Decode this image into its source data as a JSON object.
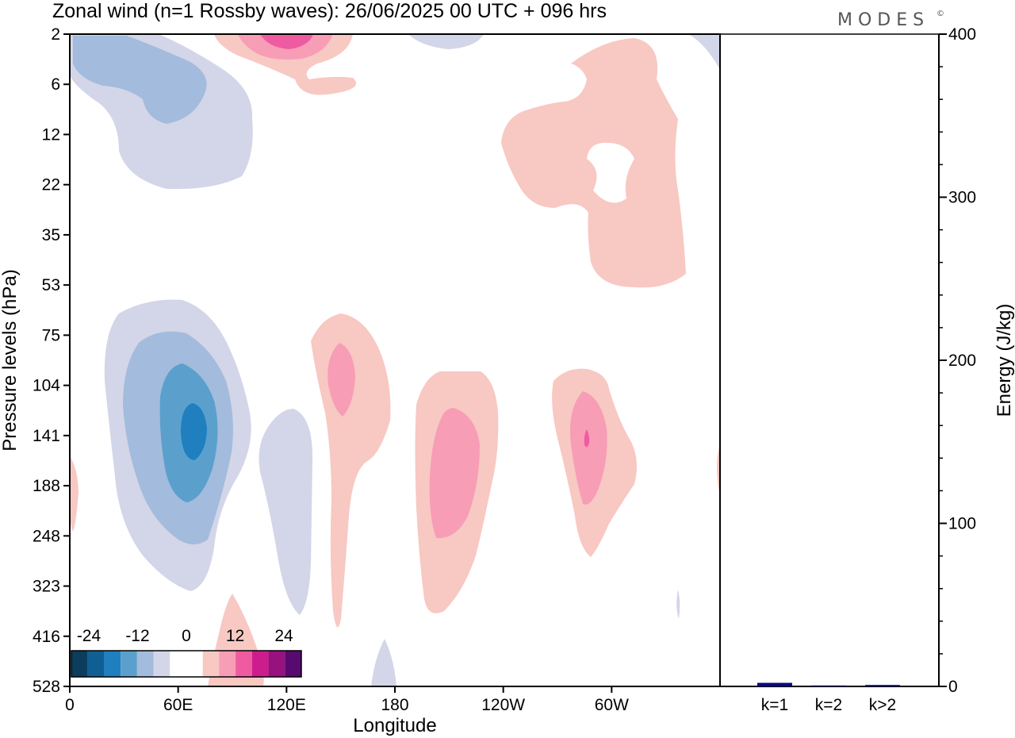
{
  "header": {
    "title": "Zonal wind (n=1 Rossby waves):  26/06/2025  00 UTC  + 096 hrs",
    "logo": "MODES",
    "logo_mark": "©"
  },
  "colors": {
    "neg": [
      "#0c3d5c",
      "#0f5f95",
      "#1f7fbf",
      "#5ba0cc",
      "#a3bbdc",
      "#d3d5e8"
    ],
    "pos": [
      "#f8c8c3",
      "#f79db6",
      "#ef5ba0",
      "#cd1c8c",
      "#97117f",
      "#580a70"
    ],
    "zero": "#ffffff",
    "bar": "#0a0a80"
  },
  "chart_data": [
    {
      "type": "heatmap",
      "subtype": "filled-contour",
      "xlabel": "Longitude",
      "ylabel": "Pressure levels (hPa)",
      "x_ticks": [
        "0",
        "60E",
        "120E",
        "180",
        "120W",
        "60W"
      ],
      "x_tick_values": [
        0,
        60,
        120,
        180,
        240,
        300
      ],
      "xlim": [
        0,
        360
      ],
      "y_ticks": [
        "2",
        "6",
        "12",
        "22",
        "35",
        "53",
        "75",
        "104",
        "141",
        "188",
        "248",
        "323",
        "416",
        "528"
      ],
      "colorbar": {
        "labels": [
          "-24",
          "-12",
          "0",
          "12",
          "24"
        ],
        "levels": [
          -24,
          -12,
          0,
          12,
          24
        ]
      },
      "regions": [
        {
          "sign": "neg",
          "level": 1,
          "lon_center": 55,
          "pres_center": 12,
          "desc": "upper-left negative lobe"
        },
        {
          "sign": "neg",
          "level": 2,
          "lon_center": 55,
          "pres_center": 6
        },
        {
          "sign": "pos",
          "level": 3,
          "lon_center": 120,
          "pres_center": 2,
          "desc": "top positive maximum"
        },
        {
          "sign": "pos",
          "level": 1,
          "lon_center": 295,
          "pres_center": 22,
          "desc": "upper-right positive region"
        },
        {
          "sign": "neg",
          "level": 5,
          "lon_center": 68,
          "pres_center": 141,
          "desc": "main negative core"
        },
        {
          "sign": "neg",
          "level": 1,
          "lon_center": 128,
          "pres_center": 220
        },
        {
          "sign": "neg",
          "level": 1,
          "lon_center": 174,
          "pres_center": 500
        },
        {
          "sign": "pos",
          "level": 2,
          "lon_center": 150,
          "pres_center": 104
        },
        {
          "sign": "pos",
          "level": 2,
          "lon_center": 210,
          "pres_center": 188
        },
        {
          "sign": "pos",
          "level": 3,
          "lon_center": 286,
          "pres_center": 141
        },
        {
          "sign": "pos",
          "level": 1,
          "lon_center": 90,
          "pres_center": 470
        }
      ]
    },
    {
      "type": "bar",
      "categories": [
        "k=1",
        "k=2",
        "k>2"
      ],
      "values": [
        2.2,
        0.6,
        0.9
      ],
      "ylabel": "Energy (J/kg)",
      "ylim": [
        0,
        400
      ],
      "y_ticks": [
        0,
        100,
        200,
        300,
        400
      ]
    }
  ]
}
